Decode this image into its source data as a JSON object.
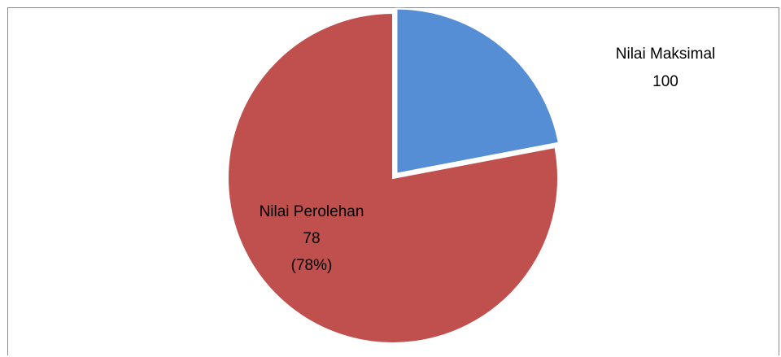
{
  "chart_data": {
    "type": "pie",
    "categories": [
      "Nilai Maksimal",
      "Nilai Perolehan"
    ],
    "values": [
      22,
      78
    ],
    "colors": [
      "#558ed5",
      "#c0504d"
    ],
    "exploded": "Nilai Maksimal",
    "legend": "none",
    "data_labels": [
      {
        "name": "Nilai Maksimal",
        "value": "100",
        "percent": ""
      },
      {
        "name": "Nilai Perolehan",
        "value": "78",
        "percent": "(78%)"
      }
    ]
  }
}
